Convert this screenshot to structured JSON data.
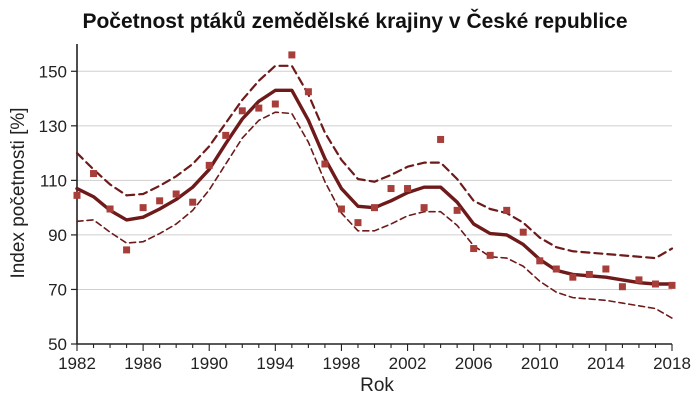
{
  "chart_data": {
    "type": "line",
    "title": "Početnost ptáků zemědělské krajiny v České republice",
    "xlabel": "Rok",
    "ylabel": "Index početnosti [%]",
    "xlim": [
      1982,
      2018
    ],
    "ylim": [
      50,
      160
    ],
    "x_ticks": [
      "1982",
      "1986",
      "1990",
      "1994",
      "1998",
      "2002",
      "2006",
      "2010",
      "2014",
      "2018"
    ],
    "y_ticks": [
      "50",
      "70",
      "90",
      "110",
      "130",
      "150"
    ],
    "grid": "horizontal",
    "legend": "none",
    "colors": {
      "trend": "#6e1a1a",
      "bounds": "#6e1a1a",
      "points": "#a83e3a",
      "grid": "#cfcfcf"
    },
    "series": [
      {
        "role": "trend",
        "style": "solid",
        "x": [
          1982,
          1983,
          1984,
          1985,
          1986,
          1987,
          1988,
          1989,
          1990,
          1991,
          1992,
          1993,
          1994,
          1995,
          1996,
          1997,
          1998,
          1999,
          2000,
          2001,
          2002,
          2003,
          2004,
          2005,
          2006,
          2007,
          2008,
          2009,
          2010,
          2011,
          2012,
          2013,
          2014,
          2015,
          2016,
          2017,
          2018
        ],
        "y": [
          107,
          104,
          99,
          95.5,
          96.5,
          99.5,
          103,
          107.5,
          114,
          123.5,
          132.5,
          139,
          143,
          143,
          132,
          118,
          107,
          100.5,
          100,
          102.5,
          105.5,
          107.5,
          107.5,
          102,
          94,
          90.5,
          90,
          86.5,
          81,
          77,
          75.5,
          75,
          74.5,
          73.5,
          72.5,
          72,
          72
        ]
      },
      {
        "role": "upper-bound",
        "style": "dashed",
        "x": [
          1982,
          1983,
          1984,
          1985,
          1986,
          1987,
          1988,
          1989,
          1990,
          1991,
          1992,
          1993,
          1994,
          1995,
          1996,
          1997,
          1998,
          1999,
          2000,
          2001,
          2002,
          2003,
          2004,
          2005,
          2006,
          2007,
          2008,
          2009,
          2010,
          2011,
          2012,
          2013,
          2014,
          2015,
          2016,
          2017,
          2018
        ],
        "y": [
          120,
          114,
          108.5,
          104.5,
          105,
          108,
          111.5,
          116,
          122.5,
          131,
          139.5,
          146.5,
          152,
          152,
          141.5,
          127.5,
          117.5,
          110.5,
          109.5,
          112,
          115,
          116.5,
          116.5,
          110.5,
          102.5,
          99.5,
          98,
          94.5,
          89,
          85.5,
          84,
          83.5,
          83,
          82.5,
          82,
          81.5,
          85
        ]
      },
      {
        "role": "lower-bound",
        "style": "dashed",
        "x": [
          1982,
          1983,
          1984,
          1985,
          1986,
          1987,
          1988,
          1989,
          1990,
          1991,
          1992,
          1993,
          1994,
          1995,
          1996,
          1997,
          1998,
          1999,
          2000,
          2001,
          2002,
          2003,
          2004,
          2005,
          2006,
          2007,
          2008,
          2009,
          2010,
          2011,
          2012,
          2013,
          2014,
          2015,
          2016,
          2017,
          2018
        ],
        "y": [
          95,
          95.5,
          91,
          87,
          87.5,
          90.5,
          94,
          99,
          106.5,
          116,
          125.5,
          132,
          135,
          134.5,
          124,
          109.5,
          98,
          91.5,
          91.5,
          94,
          97,
          98.5,
          98.5,
          93.5,
          86,
          82,
          81.5,
          78.5,
          73,
          69,
          67,
          66.5,
          66,
          65,
          64,
          63,
          59.5
        ]
      },
      {
        "role": "observed",
        "style": "markers",
        "x": [
          1982,
          1983,
          1984,
          1985,
          1986,
          1987,
          1988,
          1989,
          1990,
          1991,
          1992,
          1993,
          1994,
          1995,
          1996,
          1997,
          1998,
          1999,
          2000,
          2001,
          2002,
          2003,
          2004,
          2005,
          2006,
          2007,
          2008,
          2009,
          2010,
          2011,
          2012,
          2013,
          2014,
          2015,
          2016,
          2017,
          2018
        ],
        "y": [
          104.5,
          112.5,
          99.5,
          84.5,
          100,
          102.5,
          105,
          102,
          115.5,
          126.5,
          135.5,
          136.5,
          138,
          156,
          142.5,
          116,
          99.5,
          94.5,
          100,
          107,
          107,
          100,
          125,
          99,
          85,
          82.5,
          99,
          91,
          80.5,
          77.5,
          74.5,
          75.5,
          77.5,
          71,
          73.5,
          72,
          71.5
        ]
      }
    ]
  }
}
